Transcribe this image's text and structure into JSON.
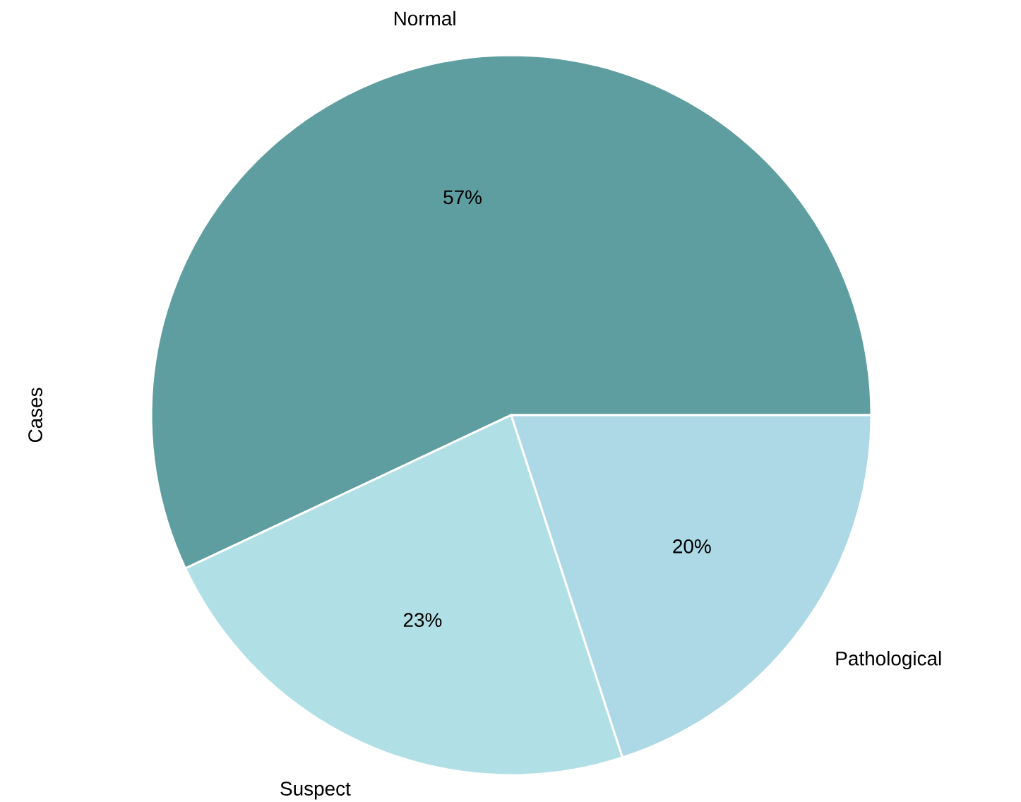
{
  "chart_data": {
    "type": "pie",
    "ylabel": "Cases",
    "categories": [
      "Normal",
      "Suspect",
      "Pathological"
    ],
    "values": [
      57,
      23,
      20
    ],
    "value_labels": [
      "57%",
      "23%",
      "20%"
    ],
    "colors": [
      "#5f9ea0",
      "#b0e0e6",
      "#add8e6"
    ]
  }
}
